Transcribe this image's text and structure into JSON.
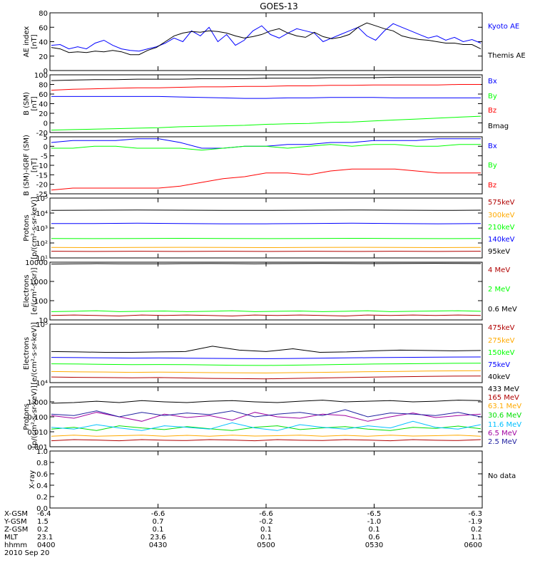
{
  "title": "GOES-13",
  "colors": {
    "black": "#000000",
    "blue": "#0000ff",
    "red": "#ff0000",
    "green": "#00ff00",
    "darkred": "#b00000",
    "orange": "#ffaa00",
    "cyan": "#00c0ff",
    "purple": "#a000a0",
    "yellow": "#e0e000",
    "lime": "#00e000",
    "indigo": "#2020a0"
  },
  "chart_data": [
    {
      "type": "line",
      "ylabel": [
        "AE index",
        "[nT]"
      ],
      "ylim": [
        0,
        80
      ],
      "scale": "linear",
      "yticks": [
        0,
        20,
        40,
        60,
        80
      ],
      "yticklabels": [
        "0",
        "20",
        "40",
        "60",
        "80"
      ],
      "series": [
        {
          "name": "Kyoto AE",
          "color": "blue",
          "values": [
            35,
            36,
            30,
            33,
            30,
            38,
            42,
            35,
            30,
            28,
            27,
            30,
            33,
            38,
            45,
            40,
            55,
            48,
            60,
            40,
            50,
            35,
            42,
            55,
            62,
            50,
            45,
            52,
            58,
            55,
            52,
            40,
            45,
            50,
            55,
            60,
            48,
            42,
            55,
            65,
            60,
            55,
            50,
            45,
            48,
            42,
            46,
            40,
            43,
            38
          ]
        },
        {
          "name": "Themis AE",
          "color": "black",
          "values": [
            32,
            30,
            25,
            26,
            25,
            27,
            26,
            28,
            26,
            22,
            22,
            28,
            32,
            40,
            48,
            52,
            54,
            53,
            55,
            54,
            52,
            48,
            45,
            47,
            50,
            55,
            58,
            52,
            48,
            46,
            53,
            47,
            44,
            46,
            50,
            60,
            66,
            62,
            58,
            55,
            48,
            45,
            43,
            42,
            40,
            38,
            38,
            36,
            36,
            30
          ]
        }
      ],
      "legend": [
        "Kyoto AE",
        "Themis AE"
      ]
    },
    {
      "type": "line",
      "ylabel": [
        "B (SM)",
        "[nT]"
      ],
      "ylim": [
        -20,
        100
      ],
      "scale": "linear",
      "yticks": [
        -20,
        0,
        20,
        40,
        60,
        80,
        100
      ],
      "yticklabels": [
        "-20",
        "0",
        "20",
        "40",
        "60",
        "80",
        "100"
      ],
      "series": [
        {
          "name": "Bx",
          "color": "blue",
          "values": [
            55,
            55,
            55,
            55,
            55,
            55,
            54,
            53,
            52,
            51,
            51,
            52,
            52,
            53,
            53,
            53,
            52,
            52,
            52,
            52,
            52
          ]
        },
        {
          "name": "By",
          "color": "green",
          "values": [
            -15,
            -14,
            -13,
            -12,
            -11,
            -10,
            -8,
            -7,
            -6,
            -5,
            -3,
            -2,
            -1,
            1,
            2,
            4,
            6,
            8,
            10,
            12,
            14
          ]
        },
        {
          "name": "Bz",
          "color": "red",
          "values": [
            68,
            70,
            71,
            72,
            73,
            73,
            74,
            75,
            75,
            76,
            76,
            77,
            77,
            78,
            78,
            79,
            79,
            79,
            79,
            80,
            80
          ]
        },
        {
          "name": "Bmag",
          "color": "black",
          "values": [
            88,
            89,
            90,
            90,
            91,
            91,
            91,
            92,
            92,
            92,
            93,
            93,
            93,
            94,
            94,
            94,
            95,
            95,
            95,
            95,
            95
          ]
        }
      ],
      "legend": [
        "Bx",
        "By",
        "Bz",
        "Bmag"
      ]
    },
    {
      "type": "line",
      "ylabel": [
        "B (SM)-IGRF (SM)",
        "[nT]"
      ],
      "ylim": [
        -25,
        5
      ],
      "scale": "linear",
      "yticks": [
        -25,
        -20,
        -15,
        -10,
        -5,
        0,
        5
      ],
      "yticklabels": [
        "-25",
        "-20",
        "-15",
        "-10",
        "-5",
        "0",
        "5"
      ],
      "series": [
        {
          "name": "Bx",
          "color": "blue",
          "values": [
            2,
            3,
            3,
            3,
            4,
            4,
            2,
            -1,
            -1,
            0,
            0,
            1,
            1,
            2,
            2,
            3,
            3,
            3,
            4,
            4,
            4
          ]
        },
        {
          "name": "By",
          "color": "green",
          "values": [
            -1,
            -1,
            0,
            0,
            -1,
            -1,
            -1,
            -2,
            -1,
            0,
            0,
            -1,
            0,
            1,
            0,
            1,
            1,
            0,
            0,
            1,
            1
          ]
        },
        {
          "name": "Bz",
          "color": "red",
          "values": [
            -23,
            -22,
            -22,
            -22,
            -22,
            -22,
            -21,
            -19,
            -17,
            -16,
            -14,
            -14,
            -15,
            -13,
            -12,
            -12,
            -12,
            -13,
            -14,
            -14,
            -14
          ]
        }
      ],
      "legend": [
        "Bx",
        "By",
        "Bz"
      ]
    },
    {
      "type": "line",
      "ylabel": [
        "Protons",
        "[p/(cm²-s-sr-keV)]"
      ],
      "ylim": [
        10,
        100000
      ],
      "scale": "log",
      "yticks": [
        10,
        100,
        1000,
        10000,
        100000
      ],
      "yticklabels": [
        "10¹",
        "10²",
        "10³",
        "10⁴",
        "10⁵"
      ],
      "series": [
        {
          "name": "575keV",
          "color": "darkred",
          "values": [
            28,
            27,
            28,
            27,
            28,
            27,
            28,
            27,
            28,
            27,
            28
          ]
        },
        {
          "name": "300keV",
          "color": "orange",
          "values": [
            50,
            49,
            50,
            51,
            50,
            49,
            50,
            51,
            50,
            49,
            50
          ]
        },
        {
          "name": "210keV",
          "color": "green",
          "values": [
            200,
            195,
            200,
            205,
            200,
            195,
            200,
            205,
            200,
            195,
            200
          ]
        },
        {
          "name": "140keV",
          "color": "blue",
          "values": [
            2000,
            2000,
            2100,
            2000,
            1900,
            1900,
            2000,
            2100,
            2000,
            1900,
            2000
          ]
        },
        {
          "name": "95keV",
          "color": "black",
          "values": [
            15000,
            15500,
            16000,
            15500,
            15000,
            15000,
            15500,
            16000,
            15500,
            15000,
            15500
          ]
        }
      ],
      "legend": [
        "575keV",
        "300keV",
        "210keV",
        "140keV",
        "95keV"
      ]
    },
    {
      "type": "line",
      "ylabel": [
        "Electrons",
        "[e/(cm²-s-sr)]"
      ],
      "ylim": [
        10,
        10000
      ],
      "scale": "log",
      "yticks": [
        10,
        100,
        1000,
        10000
      ],
      "yticklabels": [
        "10",
        "100",
        "1000",
        "10000"
      ],
      "series": [
        {
          "name": "4 MeV",
          "color": "darkred",
          "values": [
            17,
            18,
            17,
            16,
            18,
            17,
            18,
            17,
            16,
            18,
            17,
            18,
            17,
            16,
            18,
            17,
            18,
            17,
            18,
            17
          ]
        },
        {
          "name": "2 MeV",
          "color": "green",
          "values": [
            27,
            28,
            30,
            27,
            28,
            29,
            27,
            28,
            30,
            27,
            28,
            29,
            27,
            28,
            30,
            27,
            28,
            29,
            30,
            28
          ]
        },
        {
          "name": "0.6 MeV",
          "color": "black",
          "values": [
            8000,
            8200,
            8400,
            8300,
            8200,
            8300,
            8400,
            8500,
            8400,
            8300,
            8400,
            8500,
            8600,
            8500,
            8400,
            8500,
            8600,
            8700,
            8600,
            8500
          ]
        }
      ],
      "legend": [
        "4 MeV",
        "2 MeV",
        "0.6 MeV"
      ]
    },
    {
      "type": "line",
      "ylabel": [
        "Electrons",
        "[e/(cm²-s-sr-keV)]"
      ],
      "ylim": [
        10000,
        100000
      ],
      "scale": "log",
      "yticks": [
        10000,
        100000
      ],
      "yticklabels": [
        "10⁴",
        "10⁵"
      ],
      "series": [
        {
          "name": "475keV",
          "color": "darkred",
          "values": [
            12500,
            12300,
            12200,
            12100,
            12200,
            12000,
            11800,
            11700,
            11600,
            11800,
            12000,
            12200,
            12400,
            12600,
            12800,
            12900,
            13000
          ]
        },
        {
          "name": "275keV",
          "color": "orange",
          "values": [
            15500,
            15300,
            15200,
            15000,
            15100,
            15000,
            14800,
            14700,
            14600,
            14800,
            15000,
            15200,
            15400,
            15600,
            15800,
            15900,
            16000
          ]
        },
        {
          "name": "150keV",
          "color": "green",
          "values": [
            21000,
            20800,
            20500,
            20300,
            20400,
            20300,
            20000,
            19800,
            19700,
            19900,
            20200,
            20500,
            20800,
            21000,
            21200,
            21400,
            21500
          ]
        },
        {
          "name": "75keV",
          "color": "blue",
          "values": [
            27000,
            26800,
            26500,
            26300,
            26400,
            26200,
            26000,
            25800,
            25700,
            25900,
            26200,
            26500,
            26800,
            27000,
            27200,
            27400,
            27500
          ]
        },
        {
          "name": "40keV",
          "color": "black",
          "values": [
            34000,
            33500,
            33000,
            33000,
            33500,
            34000,
            42000,
            36000,
            34000,
            38000,
            33000,
            33500,
            35000,
            36000,
            35500,
            35000,
            35500
          ]
        }
      ],
      "legend": [
        "475keV",
        "275keV",
        "150keV",
        "75keV",
        "40keV"
      ]
    },
    {
      "type": "line",
      "ylabel": [
        "Protons",
        "[p/(cm²-s-sr-keV)]"
      ],
      "ylim": [
        0.001,
        10
      ],
      "scale": "log",
      "yticks": [
        0.001,
        0.01,
        0.1,
        1
      ],
      "yticklabels": [
        "0.001",
        "0.010",
        "0.100",
        "1.000"
      ],
      "series": [
        {
          "name": "433 MeV",
          "color": "black",
          "values": [
            0.8,
            0.9,
            1.1,
            0.9,
            1.2,
            1.0,
            0.9,
            1.1,
            1.2,
            1.0,
            0.9,
            1.1,
            1.3,
            1.0,
            1.1,
            1.2,
            1.0,
            1.1,
            1.3,
            1.2
          ]
        },
        {
          "name": "165 MeV",
          "color": "darkred",
          "values": [
            0.0025,
            0.003,
            0.0028,
            0.0025,
            0.003,
            0.0027,
            0.0026,
            0.003,
            0.0028,
            0.0025,
            0.003,
            0.0027,
            0.0026,
            0.003,
            0.0028,
            0.0025,
            0.003,
            0.0027,
            0.0026,
            0.003
          ]
        },
        {
          "name": "63.1 MeV",
          "color": "orange",
          "values": [
            0.005,
            0.006,
            0.005,
            0.0055,
            0.006,
            0.005,
            0.0058,
            0.005,
            0.006,
            0.0052,
            0.0055,
            0.006,
            0.005,
            0.0058,
            0.005,
            0.006,
            0.0052,
            0.0055,
            0.006,
            0.005
          ]
        },
        {
          "name": "30.6 MeV",
          "color": "lime",
          "values": [
            0.015,
            0.02,
            0.012,
            0.025,
            0.018,
            0.014,
            0.022,
            0.016,
            0.012,
            0.02,
            0.025,
            0.014,
            0.018,
            0.022,
            0.015,
            0.012,
            0.02,
            0.017,
            0.024,
            0.016
          ]
        },
        {
          "name": "11.6 MeV",
          "color": "cyan",
          "values": [
            0.02,
            0.015,
            0.03,
            0.018,
            0.012,
            0.025,
            0.02,
            0.015,
            0.04,
            0.018,
            0.012,
            0.03,
            0.02,
            0.015,
            0.025,
            0.018,
            0.05,
            0.02,
            0.015,
            0.03
          ]
        },
        {
          "name": "6.5 MeV",
          "color": "purple",
          "values": [
            0.12,
            0.08,
            0.2,
            0.1,
            0.05,
            0.15,
            0.09,
            0.12,
            0.06,
            0.2,
            0.1,
            0.08,
            0.15,
            0.12,
            0.05,
            0.1,
            0.18,
            0.09,
            0.12,
            0.15
          ]
        },
        {
          "name": "2.5 MeV",
          "color": "indigo",
          "values": [
            0.15,
            0.12,
            0.25,
            0.1,
            0.2,
            0.12,
            0.18,
            0.14,
            0.25,
            0.1,
            0.15,
            0.2,
            0.12,
            0.3,
            0.1,
            0.18,
            0.15,
            0.12,
            0.2,
            0.1
          ]
        }
      ],
      "legend": [
        "433 MeV",
        "165 MeV",
        "63.1 MeV",
        "30.6 MeV",
        "11.6 MeV",
        "6.5 MeV",
        "2.5 MeV"
      ]
    },
    {
      "type": "line",
      "ylabel": [
        "X-ray"
      ],
      "ylim": [
        0,
        1
      ],
      "scale": "linear",
      "yticks": [
        0,
        0.2,
        0.4,
        0.6,
        0.8,
        1.0
      ],
      "yticklabels": [
        "0.0",
        "0.2",
        "0.4",
        "0.6",
        "0.8",
        "1.0"
      ],
      "series": [],
      "legend": [],
      "note": "No data"
    }
  ],
  "axis_table": {
    "rows": [
      {
        "label": "X-GSM",
        "values": [
          "-6.4",
          "-6.6",
          "-6.6",
          "-6.5",
          "-6.3"
        ]
      },
      {
        "label": "Y-GSM",
        "values": [
          "1.5",
          "0.7",
          "-0.2",
          "-1.0",
          "-1.9"
        ]
      },
      {
        "label": "Z-GSM",
        "values": [
          "0.2",
          "0.1",
          "0.1",
          "0.1",
          "0.2"
        ]
      },
      {
        "label": "MLT",
        "values": [
          "23.1",
          "23.6",
          "0.1",
          "0.6",
          "1.1"
        ]
      },
      {
        "label": "hhmm",
        "values": [
          "0400",
          "0430",
          "0500",
          "0530",
          "0600"
        ]
      }
    ],
    "date": "2010 Sep 20"
  }
}
